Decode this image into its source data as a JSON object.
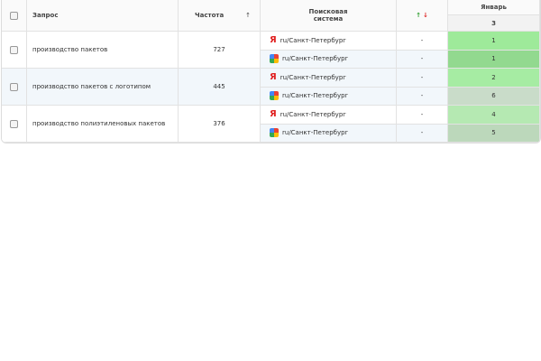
{
  "table": {
    "columns": {
      "query": "Запрос",
      "frequency": "Частота",
      "sort": "↑",
      "engine": "Поисковая система",
      "up": "↑",
      "down": "↓",
      "month": "Январь",
      "month_count": 3
    },
    "rows": [
      {
        "query": "производство пакетов",
        "frequency": 727,
        "results": [
          {
            "logo": "Я",
            "region": "ru/Санкт-Петербург",
            "change": "-",
            "position": 1,
            "color": "#9eea9a"
          },
          {
            "region": "ru/Санкт-Петербург",
            "change": "-",
            "position": 1,
            "color": "#92d98f"
          }
        ]
      },
      {
        "query": "производство пакетов с логотипом",
        "frequency": 445,
        "results": [
          {
            "logo": "Я",
            "region": "ru/Санкт-Петербург",
            "change": "-",
            "position": 2,
            "color": "#a6eca3"
          },
          {
            "region": "ru/Санкт-Петербург",
            "change": "-",
            "position": 6,
            "color": "#c9dcc9"
          }
        ]
      },
      {
        "query": "производство полиэтиленовых пакетов",
        "frequency": 376,
        "results": [
          {
            "logo": "Я",
            "region": "ru/Санкт-Петербург",
            "change": "-",
            "position": 4,
            "color": "#b5e9b2"
          },
          {
            "region": "ru/Санкт-Петербург",
            "change": "-",
            "position": 5,
            "color": "#bcd8bb"
          }
        ]
      }
    ]
  }
}
